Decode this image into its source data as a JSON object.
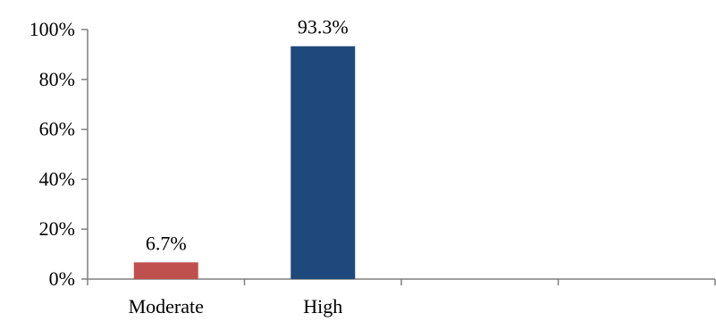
{
  "chart_data": {
    "type": "bar",
    "categories": [
      "Moderate",
      "High",
      "",
      ""
    ],
    "values": [
      6.7,
      93.3,
      null,
      null
    ],
    "value_labels": [
      "6.7%",
      "93.3%",
      "",
      ""
    ],
    "bar_colors": [
      "#c0504d",
      "#1f497d",
      "",
      ""
    ],
    "y_ticks": [
      0,
      20,
      40,
      60,
      80,
      100
    ],
    "y_tick_labels": [
      "0%",
      "20%",
      "40%",
      "60%",
      "80%",
      "100%"
    ],
    "ylim": [
      0,
      100
    ],
    "title": "",
    "xlabel": "",
    "ylabel": "",
    "grid": false,
    "legend": "none",
    "axis_color": "#7f7f7f"
  }
}
